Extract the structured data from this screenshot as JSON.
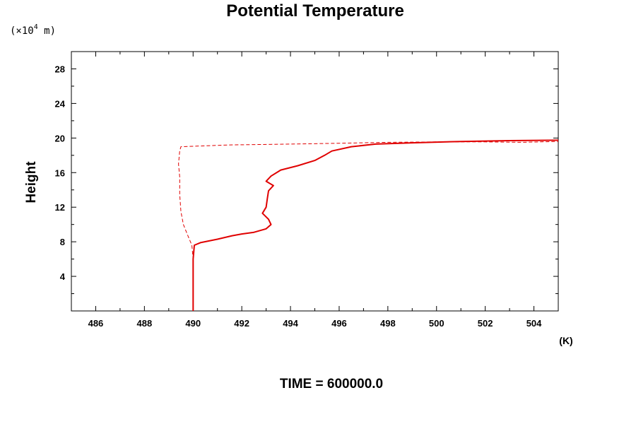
{
  "chart_data": {
    "type": "line",
    "title": "Potential Temperature",
    "ylabel": "Height",
    "yunits": {
      "prefix": "(×10",
      "exponent": "4",
      "suffix": " m)"
    },
    "xunits": "(K)",
    "footer": "TIME = 600000.0",
    "xlim": [
      485,
      505
    ],
    "ylim": [
      0,
      30
    ],
    "xticks": [
      486,
      488,
      490,
      492,
      494,
      496,
      498,
      500,
      502,
      504
    ],
    "yticks": [
      4,
      8,
      12,
      16,
      20,
      24,
      28
    ],
    "grid": false,
    "series": [
      {
        "style": "solid",
        "color": "#e00000",
        "points": [
          [
            490.0,
            0.0
          ],
          [
            490.0,
            2.0
          ],
          [
            490.0,
            4.0
          ],
          [
            490.0,
            6.0
          ],
          [
            490.05,
            7.6
          ],
          [
            490.3,
            7.9
          ],
          [
            491.0,
            8.3
          ],
          [
            491.6,
            8.7
          ],
          [
            492.0,
            8.9
          ],
          [
            492.5,
            9.1
          ],
          [
            493.0,
            9.5
          ],
          [
            493.2,
            10.0
          ],
          [
            493.1,
            10.6
          ],
          [
            492.85,
            11.3
          ],
          [
            493.0,
            12.0
          ],
          [
            493.05,
            13.0
          ],
          [
            493.1,
            13.9
          ],
          [
            493.3,
            14.5
          ],
          [
            493.0,
            15.0
          ],
          [
            493.2,
            15.6
          ],
          [
            493.6,
            16.3
          ],
          [
            494.3,
            16.8
          ],
          [
            495.0,
            17.4
          ],
          [
            495.4,
            18.0
          ],
          [
            495.7,
            18.5
          ],
          [
            496.5,
            19.0
          ],
          [
            497.5,
            19.3
          ],
          [
            499.0,
            19.45
          ],
          [
            501.0,
            19.6
          ],
          [
            503.0,
            19.7
          ],
          [
            505.0,
            19.75
          ]
        ]
      },
      {
        "style": "dashed",
        "color": "#e00000",
        "points": [
          [
            490.0,
            0.0
          ],
          [
            490.0,
            6.0
          ],
          [
            489.95,
            7.6
          ],
          [
            489.8,
            8.6
          ],
          [
            489.6,
            10.0
          ],
          [
            489.5,
            11.5
          ],
          [
            489.45,
            13.5
          ],
          [
            489.45,
            15.5
          ],
          [
            489.4,
            17.0
          ],
          [
            489.45,
            18.5
          ],
          [
            489.5,
            19.0
          ],
          [
            491.5,
            19.2
          ],
          [
            494.0,
            19.3
          ],
          [
            496.0,
            19.4
          ],
          [
            498.0,
            19.5
          ],
          [
            500.0,
            19.55
          ],
          [
            502.0,
            19.55
          ],
          [
            503.5,
            19.5
          ],
          [
            505.0,
            19.6
          ]
        ]
      }
    ]
  }
}
